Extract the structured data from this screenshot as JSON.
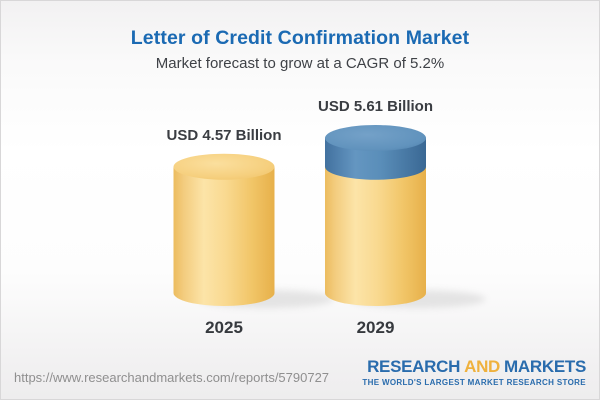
{
  "chart_data": {
    "type": "bar",
    "variant": "3d-cylinders",
    "title": "Letter of Credit Confirmation Market",
    "subtitle": "Market forecast to grow at a CAGR of 5.2%",
    "unit": "USD Billion",
    "cagr_percent": 5.2,
    "categories": [
      "2025",
      "2029"
    ],
    "values": [
      4.57,
      5.61
    ],
    "value_labels": [
      "USD 4.57 Billion",
      "USD 5.61 Billion"
    ],
    "growth_cap": {
      "bar_index": 1,
      "base_value": 4.57
    },
    "legend": null,
    "grid": false,
    "colors": {
      "title": "#1b6ab3",
      "subtitle": "#3f4247",
      "value_label": "#3a3d42",
      "year_label": "#36393e",
      "gold_side_stops": [
        [
          "0%",
          "#ecbc5e"
        ],
        [
          "10%",
          "#f3cc7e"
        ],
        [
          "30%",
          "#fce4a8"
        ],
        [
          "52%",
          "#f9d990"
        ],
        [
          "78%",
          "#f1c567"
        ],
        [
          "100%",
          "#e7b04a"
        ]
      ],
      "gold_top_stops": [
        [
          "0%",
          "#fbdf9e"
        ],
        [
          "60%",
          "#f6d07f"
        ],
        [
          "100%",
          "#efc164"
        ]
      ],
      "blue_side_stops": [
        [
          "0%",
          "#42719f"
        ],
        [
          "30%",
          "#6496c1"
        ],
        [
          "55%",
          "#5a8eb9"
        ],
        [
          "100%",
          "#3a6894"
        ]
      ],
      "blue_top_stops": [
        [
          "0%",
          "#74a1c8"
        ],
        [
          "65%",
          "#6193bd"
        ],
        [
          "100%",
          "#4c7da9"
        ]
      ],
      "shadow": "#999999"
    }
  },
  "footer": {
    "url": "https://www.researchandmarkets.com/reports/5790727",
    "url_color": "#8f8f8f",
    "logo": {
      "word1": "RESEARCH",
      "word2": "AND",
      "word3": "MARKETS",
      "tagline": "THE WORLD'S LARGEST MARKET RESEARCH STORE",
      "blue": "#2a6cad",
      "gold": "#efb13d"
    }
  }
}
